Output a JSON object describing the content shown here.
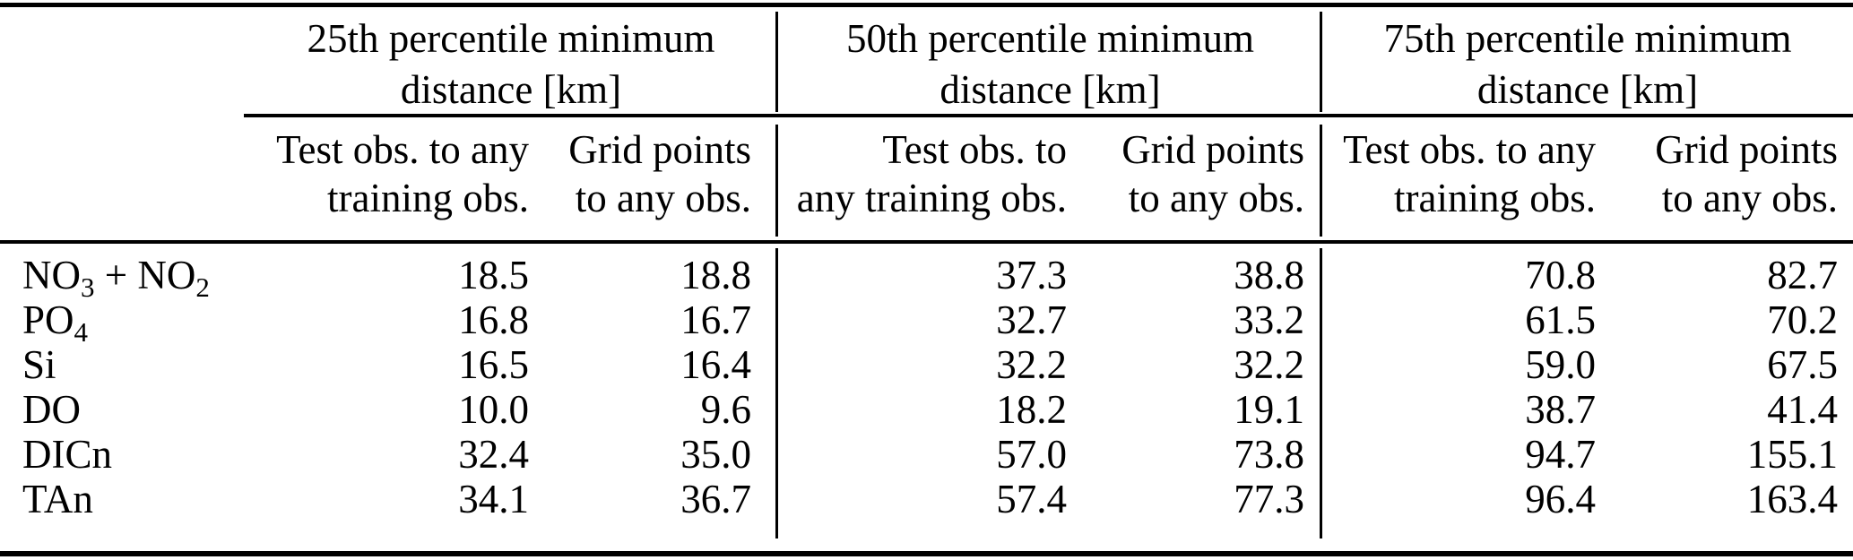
{
  "colors": {
    "background": "#ffffff",
    "text": "#000000",
    "rule": "#000000"
  },
  "table": {
    "groups": [
      {
        "title": [
          "25th percentile minimum",
          "distance [km]"
        ]
      },
      {
        "title": [
          "50th percentile minimum",
          "distance [km]"
        ]
      },
      {
        "title": [
          "75th percentile minimum",
          "distance [km]"
        ]
      }
    ],
    "columns": [
      {
        "header": [
          "Test obs. to any",
          "training obs."
        ]
      },
      {
        "header": [
          "Grid points",
          "to any obs."
        ]
      },
      {
        "header": [
          "Test obs. to",
          "any training obs."
        ]
      },
      {
        "header": [
          "Grid points",
          "to any obs."
        ]
      },
      {
        "header": [
          "Test obs. to any",
          "training obs."
        ]
      },
      {
        "header": [
          "Grid points",
          "to any obs."
        ]
      }
    ],
    "rows": [
      {
        "label_parts": [
          [
            "NO",
            0
          ],
          [
            "3",
            1
          ],
          [
            " + ",
            0
          ],
          [
            "NO",
            0
          ],
          [
            "2",
            1
          ]
        ],
        "values": [
          "18.5",
          "18.8",
          "37.3",
          "38.8",
          "70.8",
          "82.7"
        ]
      },
      {
        "label_parts": [
          [
            "PO",
            0
          ],
          [
            "4",
            1
          ]
        ],
        "values": [
          "16.8",
          "16.7",
          "32.7",
          "33.2",
          "61.5",
          "70.2"
        ]
      },
      {
        "label_parts": [
          [
            "Si",
            0
          ]
        ],
        "values": [
          "16.5",
          "16.4",
          "32.2",
          "32.2",
          "59.0",
          "67.5"
        ]
      },
      {
        "label_parts": [
          [
            "DO",
            0
          ]
        ],
        "values": [
          "10.0",
          "9.6",
          "18.2",
          "19.1",
          "38.7",
          "41.4"
        ]
      },
      {
        "label_parts": [
          [
            "DICn",
            0
          ]
        ],
        "values": [
          "32.4",
          "35.0",
          "57.0",
          "73.8",
          "94.7",
          "155.1"
        ]
      },
      {
        "label_parts": [
          [
            "TAn",
            0
          ]
        ],
        "values": [
          "34.1",
          "36.7",
          "57.4",
          "77.3",
          "96.4",
          "163.4"
        ]
      }
    ]
  }
}
